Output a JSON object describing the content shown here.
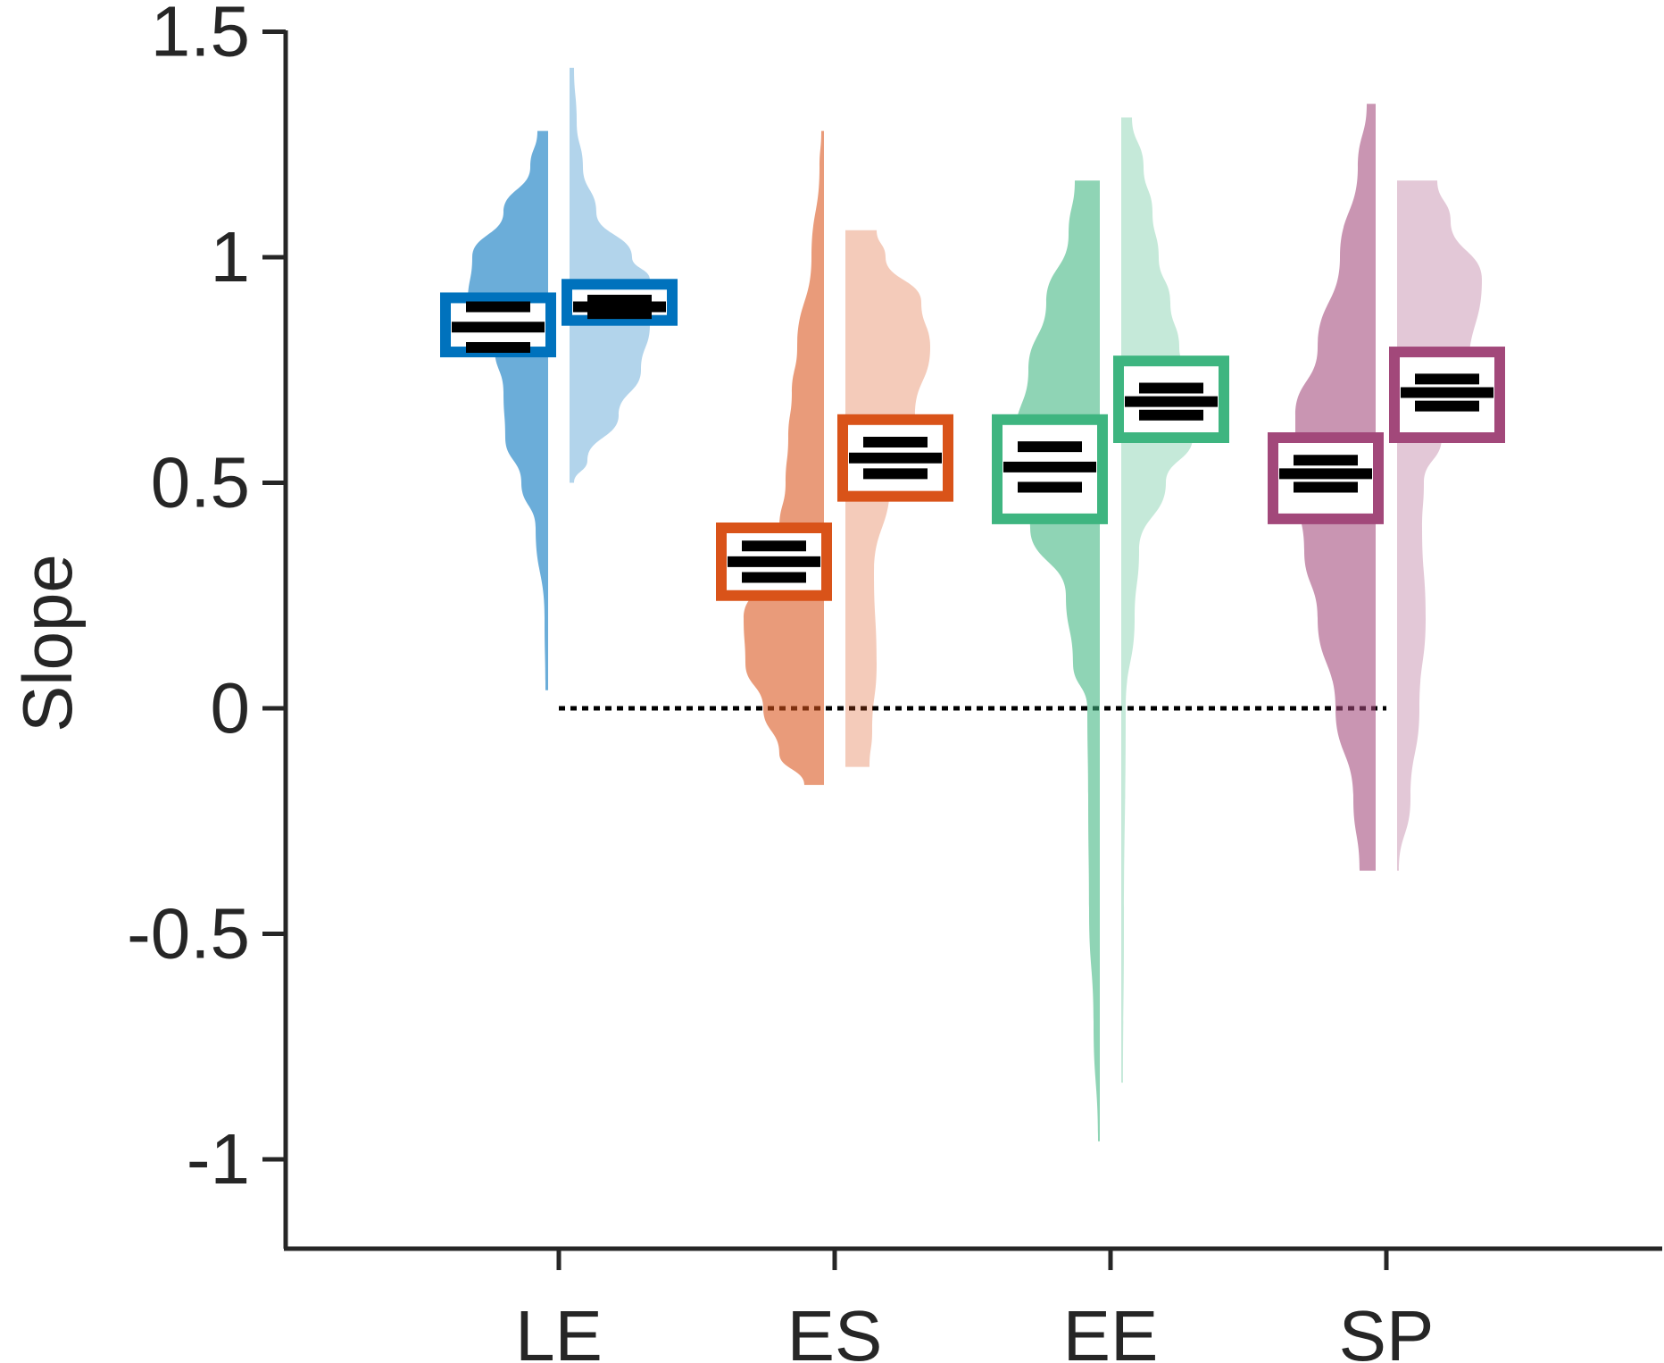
{
  "chart_data": {
    "type": "violin",
    "title": "",
    "xlabel": "",
    "ylabel": "Slope",
    "ylim": [
      -1.2,
      1.5
    ],
    "yticks": [
      1.5,
      1,
      0.5,
      0,
      -0.5,
      -1
    ],
    "ytick_labels": [
      "1.5",
      "1",
      "0.5",
      "0",
      "-0.5",
      "-1"
    ],
    "categories": [
      "LE",
      "ES",
      "EE",
      "SP"
    ],
    "reference_line": {
      "y": 0,
      "style": "dotted"
    },
    "groups": [
      {
        "category": "LE",
        "color": "#0072BD",
        "left": {
          "min": 0.04,
          "max": 1.28,
          "mean": 0.845,
          "ci_low": 0.8,
          "ci_high": 0.89,
          "box_low": 0.79,
          "box_high": 0.91,
          "density": [
            [
              0.04,
              0.003
            ],
            [
              0.2,
              0.004
            ],
            [
              0.4,
              0.014
            ],
            [
              0.5,
              0.03
            ],
            [
              0.6,
              0.048
            ],
            [
              0.7,
              0.05
            ],
            [
              0.8,
              0.06
            ],
            [
              0.9,
              0.09
            ],
            [
              1.0,
              0.085
            ],
            [
              1.1,
              0.05
            ],
            [
              1.2,
              0.02
            ],
            [
              1.28,
              0.012
            ]
          ]
        },
        "right": {
          "min": 0.5,
          "max": 1.42,
          "mean": 0.89,
          "ci_low": 0.875,
          "ci_high": 0.905,
          "box_low": 0.86,
          "box_high": 0.94,
          "density": [
            [
              0.5,
              0.005
            ],
            [
              0.55,
              0.02
            ],
            [
              0.65,
              0.055
            ],
            [
              0.75,
              0.08
            ],
            [
              0.85,
              0.09
            ],
            [
              0.95,
              0.09
            ],
            [
              1.0,
              0.07
            ],
            [
              1.1,
              0.03
            ],
            [
              1.2,
              0.015
            ],
            [
              1.3,
              0.008
            ],
            [
              1.42,
              0.005
            ]
          ]
        }
      },
      {
        "category": "ES",
        "color": "#D95319",
        "left": {
          "min": -0.17,
          "max": 1.28,
          "mean": 0.325,
          "ci_low": 0.29,
          "ci_high": 0.36,
          "box_low": 0.25,
          "box_high": 0.4,
          "density": [
            [
              -0.17,
              0.022
            ],
            [
              -0.1,
              0.05
            ],
            [
              0.0,
              0.068
            ],
            [
              0.1,
              0.088
            ],
            [
              0.2,
              0.09
            ],
            [
              0.3,
              0.07
            ],
            [
              0.4,
              0.05
            ],
            [
              0.5,
              0.043
            ],
            [
              0.6,
              0.04
            ],
            [
              0.7,
              0.036
            ],
            [
              0.8,
              0.03
            ],
            [
              1.0,
              0.014
            ],
            [
              1.2,
              0.005
            ],
            [
              1.28,
              0.003
            ]
          ]
        },
        "right": {
          "min": -0.13,
          "max": 1.06,
          "mean": 0.555,
          "ci_low": 0.52,
          "ci_high": 0.59,
          "box_low": 0.47,
          "box_high": 0.64,
          "density": [
            [
              -0.13,
              0.027
            ],
            [
              -0.05,
              0.03
            ],
            [
              0.1,
              0.035
            ],
            [
              0.3,
              0.032
            ],
            [
              0.5,
              0.05
            ],
            [
              0.65,
              0.078
            ],
            [
              0.8,
              0.095
            ],
            [
              0.9,
              0.085
            ],
            [
              1.0,
              0.045
            ],
            [
              1.06,
              0.035
            ]
          ]
        }
      },
      {
        "category": "EE",
        "color": "#3EB580",
        "left": {
          "min": -0.96,
          "max": 1.17,
          "mean": 0.535,
          "ci_low": 0.49,
          "ci_high": 0.58,
          "box_low": 0.42,
          "box_high": 0.64,
          "density": [
            [
              -0.96,
              0.002
            ],
            [
              -0.7,
              0.007
            ],
            [
              -0.45,
              0.012
            ],
            [
              -0.2,
              0.013
            ],
            [
              0.0,
              0.014
            ],
            [
              0.1,
              0.03
            ],
            [
              0.25,
              0.038
            ],
            [
              0.4,
              0.078
            ],
            [
              0.5,
              0.09
            ],
            [
              0.6,
              0.095
            ],
            [
              0.75,
              0.08
            ],
            [
              0.9,
              0.06
            ],
            [
              1.05,
              0.035
            ],
            [
              1.17,
              0.028
            ]
          ]
        },
        "right": {
          "min": -0.83,
          "max": 1.31,
          "mean": 0.68,
          "ci_low": 0.65,
          "ci_high": 0.71,
          "box_low": 0.6,
          "box_high": 0.77,
          "density": [
            [
              -0.83,
              0.002
            ],
            [
              -0.5,
              0.003
            ],
            [
              0.0,
              0.005
            ],
            [
              0.2,
              0.015
            ],
            [
              0.35,
              0.02
            ],
            [
              0.5,
              0.05
            ],
            [
              0.6,
              0.08
            ],
            [
              0.7,
              0.085
            ],
            [
              0.8,
              0.065
            ],
            [
              0.9,
              0.055
            ],
            [
              1.0,
              0.042
            ],
            [
              1.1,
              0.035
            ],
            [
              1.2,
              0.025
            ],
            [
              1.31,
              0.012
            ]
          ]
        }
      },
      {
        "category": "SP",
        "color": "#A2487A",
        "left": {
          "min": -0.36,
          "max": 1.34,
          "mean": 0.52,
          "ci_low": 0.49,
          "ci_high": 0.55,
          "box_low": 0.42,
          "box_high": 0.6,
          "density": [
            [
              -0.36,
              0.018
            ],
            [
              -0.2,
              0.025
            ],
            [
              0.0,
              0.045
            ],
            [
              0.2,
              0.065
            ],
            [
              0.35,
              0.08
            ],
            [
              0.5,
              0.09
            ],
            [
              0.65,
              0.09
            ],
            [
              0.8,
              0.065
            ],
            [
              1.0,
              0.04
            ],
            [
              1.2,
              0.02
            ],
            [
              1.34,
              0.01
            ]
          ]
        },
        "right": {
          "min": -0.36,
          "max": 1.17,
          "mean": 0.7,
          "ci_low": 0.67,
          "ci_high": 0.73,
          "box_low": 0.6,
          "box_high": 0.79,
          "density": [
            [
              -0.36,
              0.002
            ],
            [
              -0.2,
              0.015
            ],
            [
              0.0,
              0.025
            ],
            [
              0.2,
              0.032
            ],
            [
              0.4,
              0.028
            ],
            [
              0.5,
              0.03
            ],
            [
              0.6,
              0.05
            ],
            [
              0.75,
              0.08
            ],
            [
              0.95,
              0.095
            ],
            [
              1.08,
              0.06
            ],
            [
              1.17,
              0.045
            ]
          ]
        }
      }
    ]
  }
}
